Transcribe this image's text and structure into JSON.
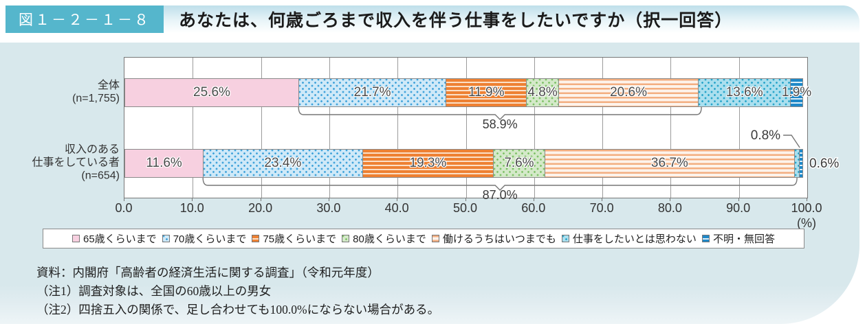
{
  "header": {
    "figure_label": "図１－２－１－８",
    "title": "あなたは、何歳ごろまで収入を伴う仕事をしたいですか（択一回答）"
  },
  "chart_data": {
    "type": "bar",
    "orientation": "horizontal",
    "stacked": true,
    "title": "あなたは、何歳ごろまで収入を伴う仕事をしたいですか（択一回答）",
    "categories": [
      {
        "lines": [
          "全体",
          "(n=1,755)"
        ]
      },
      {
        "lines": [
          "収入のある",
          "仕事をしている者",
          "(n=654)"
        ]
      }
    ],
    "xlim": [
      0,
      100
    ],
    "x_ticks": [
      "0.0",
      "10.0",
      "20.0",
      "30.0",
      "40.0",
      "50.0",
      "60.0",
      "70.0",
      "80.0",
      "90.0",
      "100.0"
    ],
    "x_unit": "(%)",
    "grid": true,
    "legend_position": "bottom",
    "series": [
      {
        "name": "65歳くらいまで",
        "values": [
          25.6,
          11.6
        ],
        "fill": "#f7d0e0",
        "pattern": "solid",
        "pattern_color": "#f7d0e0"
      },
      {
        "name": "70歳くらいまで",
        "values": [
          21.7,
          23.4
        ],
        "fill": "#cfe9f8",
        "pattern": "dots",
        "pattern_color": "#3fa2da"
      },
      {
        "name": "75歳くらいまで",
        "values": [
          11.9,
          19.3
        ],
        "fill": "#ee8133",
        "pattern": "hstripes",
        "pattern_color": "#fbe0c8"
      },
      {
        "name": "80歳くらいまで",
        "values": [
          4.8,
          7.6
        ],
        "fill": "#d4e9c9",
        "pattern": "dots",
        "pattern_color": "#7fc268"
      },
      {
        "name": "働けるうちはいつまでも",
        "values": [
          20.6,
          36.7
        ],
        "fill": "#fdf3eb",
        "pattern": "hstripes-rev",
        "pattern_color": "#f3ae80"
      },
      {
        "name": "仕事をしたいとは思わない",
        "values": [
          13.6,
          0.8
        ],
        "fill": "#abdfee",
        "pattern": "dots",
        "pattern_color": "#28a5ca"
      },
      {
        "name": "不明・無回答",
        "values": [
          1.9,
          0.6
        ],
        "fill": "#1f88c8",
        "pattern": "hstripes",
        "pattern_color": "#dceff8"
      }
    ],
    "data_labels": [
      [
        "25.6%",
        "21.7%",
        "11.9%",
        "4.8%",
        "20.6%",
        "13.6%",
        "1.9%"
      ],
      [
        "11.6%",
        "23.4%",
        "19.3%",
        "7.6%",
        "36.7%",
        "0.8%",
        "0.6%"
      ]
    ],
    "brackets": [
      {
        "row": 0,
        "from_pct": 25.6,
        "to_pct": 84.6,
        "label": "58.9%"
      },
      {
        "row": 1,
        "from_pct": 11.6,
        "to_pct": 98.6,
        "label": "87.0%"
      }
    ],
    "external_labels": [
      {
        "row": 1,
        "series_index": 5,
        "label": "0.8%",
        "placement": "callout-above"
      },
      {
        "row": 1,
        "series_index": 6,
        "label": "0.6%",
        "placement": "right"
      }
    ]
  },
  "legend": {
    "items": [
      "65歳くらいまで",
      "70歳くらいまで",
      "75歳くらいまで",
      "80歳くらいまで",
      "働けるうちはいつまでも",
      "仕事をしたいとは思わない",
      "不明・無回答"
    ]
  },
  "notes": [
    "資料：内閣府「高齢者の経済生活に関する調査」（令和元年度）",
    "（注1）調査対象は、全国の60歳以上の男女",
    "（注2）四捨五入の関係で、足し合わせても100.0%にならない場合がある。"
  ],
  "colors": {
    "figure_label_bg": "#55b6cc",
    "header_gradient_top": "#bedfea",
    "panel_bg": "#d8e8ec",
    "plot_border": "#777777",
    "gridline": "#9b9b9b",
    "segment_border": "#8a8a8a",
    "value_text": "#4a4a4a",
    "bracket": "#777777"
  }
}
